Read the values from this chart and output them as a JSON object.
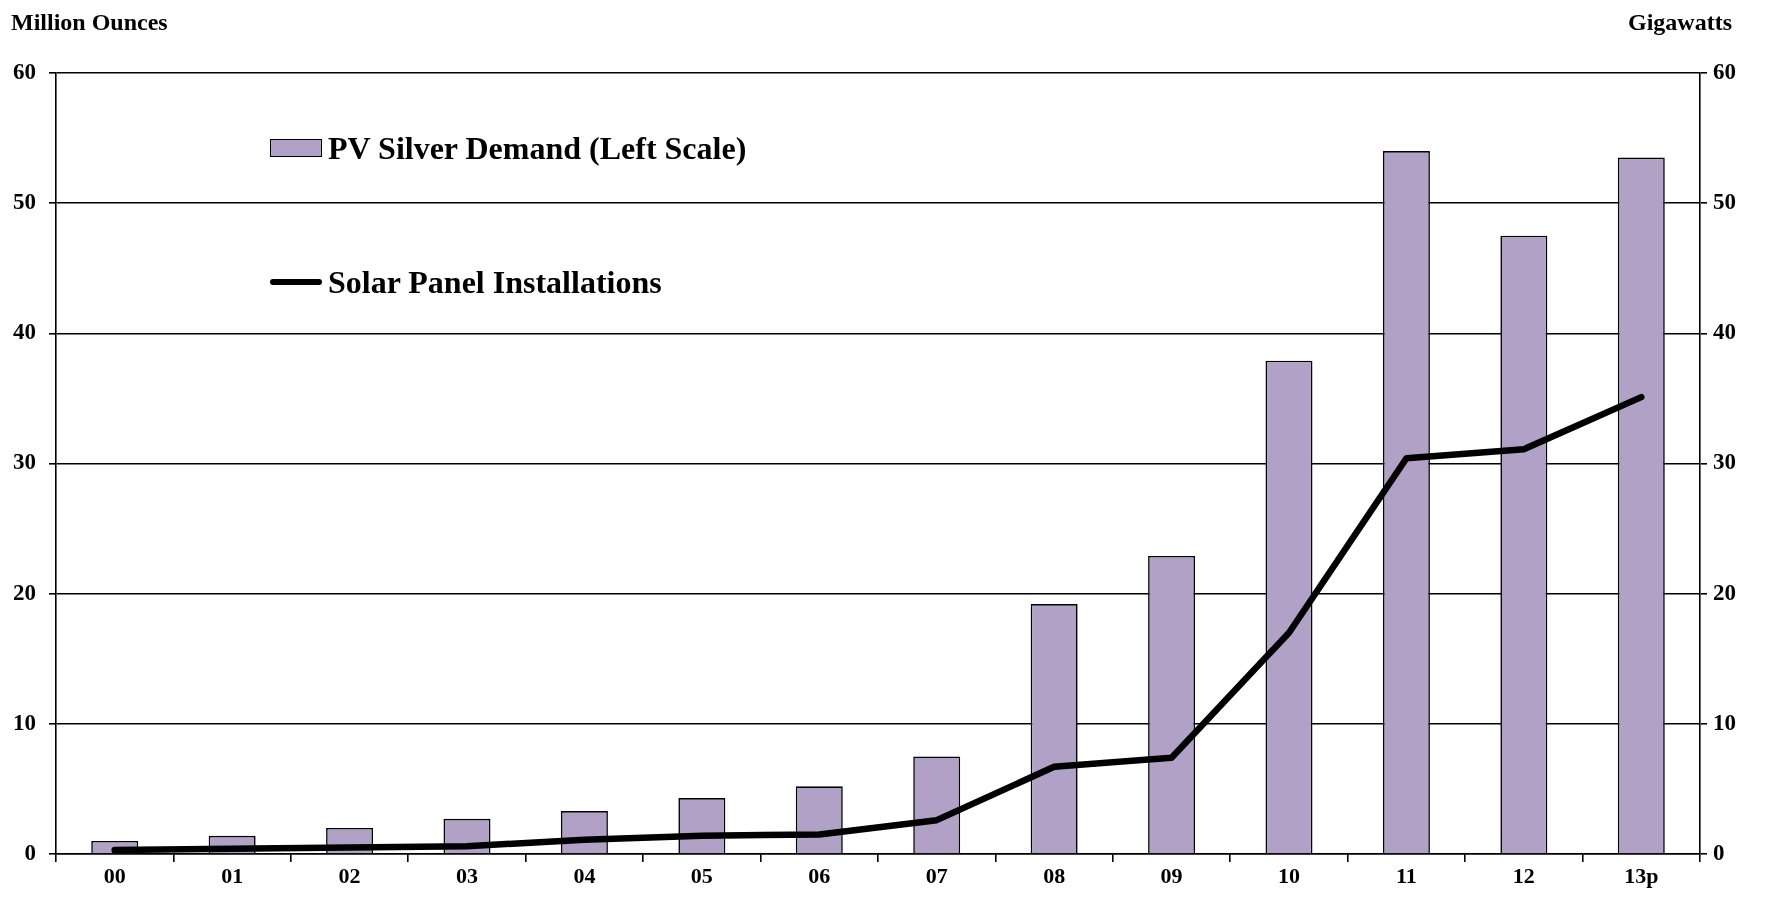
{
  "chart_data": {
    "type": "bar",
    "ylabel": "Million Ounces",
    "y2label": "Gigawatts",
    "categories": [
      "00",
      "01",
      "02",
      "03",
      "04",
      "05",
      "06",
      "07",
      "08",
      "09",
      "10",
      "11",
      "12",
      "13p"
    ],
    "series": [
      {
        "name": "PV Silver Demand (Left Scale)",
        "color": "#b2a1c7",
        "values": [
          1.0,
          1.4,
          2.0,
          2.7,
          3.3,
          4.3,
          5.2,
          7.5,
          19.2,
          22.9,
          37.9,
          54.0,
          47.5,
          53.5
        ]
      },
      {
        "name": "Solar Panel Installations",
        "type": "line",
        "axis": "y2",
        "color": "#000000",
        "values": [
          0.3,
          0.4,
          0.5,
          0.6,
          1.1,
          1.4,
          1.5,
          2.6,
          6.7,
          7.4,
          17.0,
          30.4,
          31.1,
          35.1
        ]
      }
    ],
    "ylim": [
      0,
      60
    ],
    "yticks": [
      0,
      10,
      20,
      30,
      40,
      50,
      60
    ],
    "y2lim": [
      0,
      60
    ],
    "y2ticks": [
      0,
      10,
      20,
      30,
      40,
      50,
      60
    ],
    "grid": "y",
    "legend": "top left",
    "marker": "none",
    "line_style": "solid"
  }
}
